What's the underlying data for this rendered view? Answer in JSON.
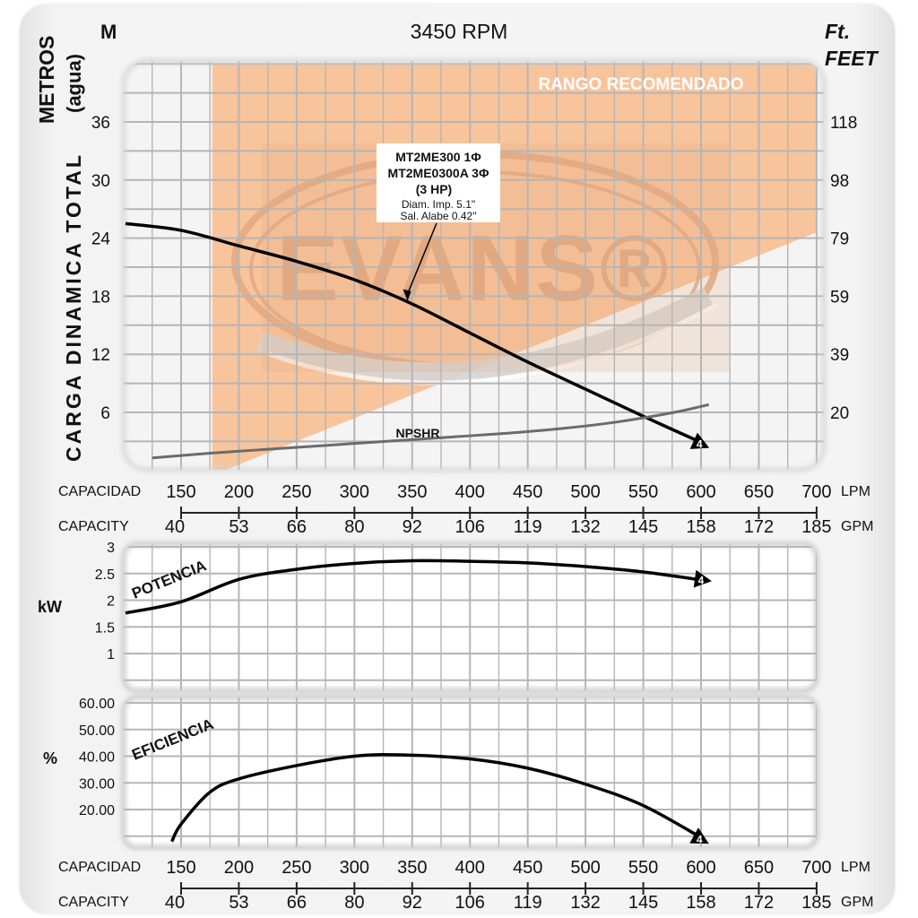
{
  "header": {
    "rpm": "3450 RPM",
    "left_unit": "M",
    "right_unit_1": "Ft.",
    "right_unit_2": "FEET",
    "y_title_main": "CARGA DINAMICA TOTAL",
    "y_title_sub1": "METROS",
    "y_title_sub2": "(agua)"
  },
  "capacity_axis": {
    "label_es": "CAPACIDAD",
    "label_en": "CAPACITY",
    "unit_lpm": "LPM",
    "unit_gpm": "GPM",
    "lpm": [
      "150",
      "200",
      "250",
      "300",
      "350",
      "400",
      "450",
      "500",
      "550",
      "600",
      "650",
      "700"
    ],
    "gpm": [
      "40",
      "53",
      "66",
      "80",
      "92",
      "106",
      "119",
      "132",
      "145",
      "158",
      "172",
      "185"
    ]
  },
  "colors": {
    "recommended_range": "#f8c49c",
    "grid": "#b5b5b5",
    "curve": "#000000",
    "npshr": "#6b6b6b",
    "watermark": "#e0a67e"
  },
  "chart_data": [
    {
      "type": "line",
      "title": "3450 RPM",
      "xlabel": "CAPACIDAD / CAPACITY (LPM)",
      "ylabel": "CARGA DINAMICA TOTAL METROS (agua)",
      "xlim": [
        125,
        700
      ],
      "ylim": [
        0,
        42
      ],
      "x_ticks": [
        150,
        200,
        250,
        300,
        350,
        400,
        450,
        500,
        550,
        600,
        650,
        700
      ],
      "y_ticks_left": [
        6,
        12,
        18,
        24,
        30,
        36
      ],
      "y_ticks_right_label": "Ft. FEET",
      "y_ticks_right": [
        "20",
        "39",
        "59",
        "79",
        "98",
        "118"
      ],
      "grid": true,
      "recommended_range_label": "RANGO RECOMENDADO",
      "watermark": "EVANS®",
      "annotation": {
        "lines": [
          "MT2ME300 1Φ",
          "MT2ME0300A 3Φ",
          "(3 HP)",
          "Diam. Imp. 5.1\"",
          "Sal. Alabe 0.42\""
        ],
        "points_to": {
          "x": 346,
          "y": 17.5
        }
      },
      "series": [
        {
          "name": "MT2ME300 (3 HP) head",
          "marker_label": "4",
          "x": [
            125,
            150,
            200,
            250,
            300,
            350,
            400,
            450,
            500,
            550,
            600
          ],
          "y": [
            25.5,
            24.8,
            23.2,
            21.6,
            19.7,
            17.2,
            14.2,
            11.2,
            8.4,
            5.6,
            2.9
          ]
        },
        {
          "name": "NPSHR",
          "x": [
            150,
            200,
            250,
            300,
            350,
            400,
            450,
            500,
            550,
            600,
            630
          ],
          "y": [
            1.3,
            1.8,
            2.2,
            2.6,
            3.0,
            3.4,
            3.8,
            4.3,
            5.0,
            6.0,
            6.8
          ]
        }
      ]
    },
    {
      "type": "line",
      "title": "POTENCIA",
      "ylabel": "kW",
      "xlim": [
        125,
        700
      ],
      "ylim": [
        0.5,
        3.1
      ],
      "y_ticks": [
        "3",
        "2.5",
        "2",
        "1.5",
        "1"
      ],
      "grid": true,
      "series": [
        {
          "name": "POTENCIA",
          "marker_label": "4",
          "x": [
            127,
            150,
            200,
            250,
            300,
            350,
            400,
            450,
            500,
            550,
            600
          ],
          "y": [
            1.76,
            1.97,
            2.39,
            2.58,
            2.69,
            2.74,
            2.73,
            2.7,
            2.63,
            2.53,
            2.38
          ]
        }
      ]
    },
    {
      "type": "line",
      "title": "EFICIENCIA",
      "ylabel": "%",
      "xlim": [
        125,
        700
      ],
      "ylim": [
        8,
        62
      ],
      "y_ticks": [
        "60.00",
        "50.00",
        "40.00",
        "30.00",
        "20.00"
      ],
      "grid": true,
      "series": [
        {
          "name": "EFICIENCIA",
          "marker_label": "4",
          "x": [
            142,
            150,
            175,
            200,
            250,
            300,
            340,
            400,
            450,
            500,
            550,
            600
          ],
          "y": [
            8.0,
            14.5,
            26.5,
            31.5,
            36.5,
            40.0,
            40.5,
            39.0,
            35.5,
            29.5,
            21.5,
            9.5
          ]
        }
      ]
    }
  ]
}
